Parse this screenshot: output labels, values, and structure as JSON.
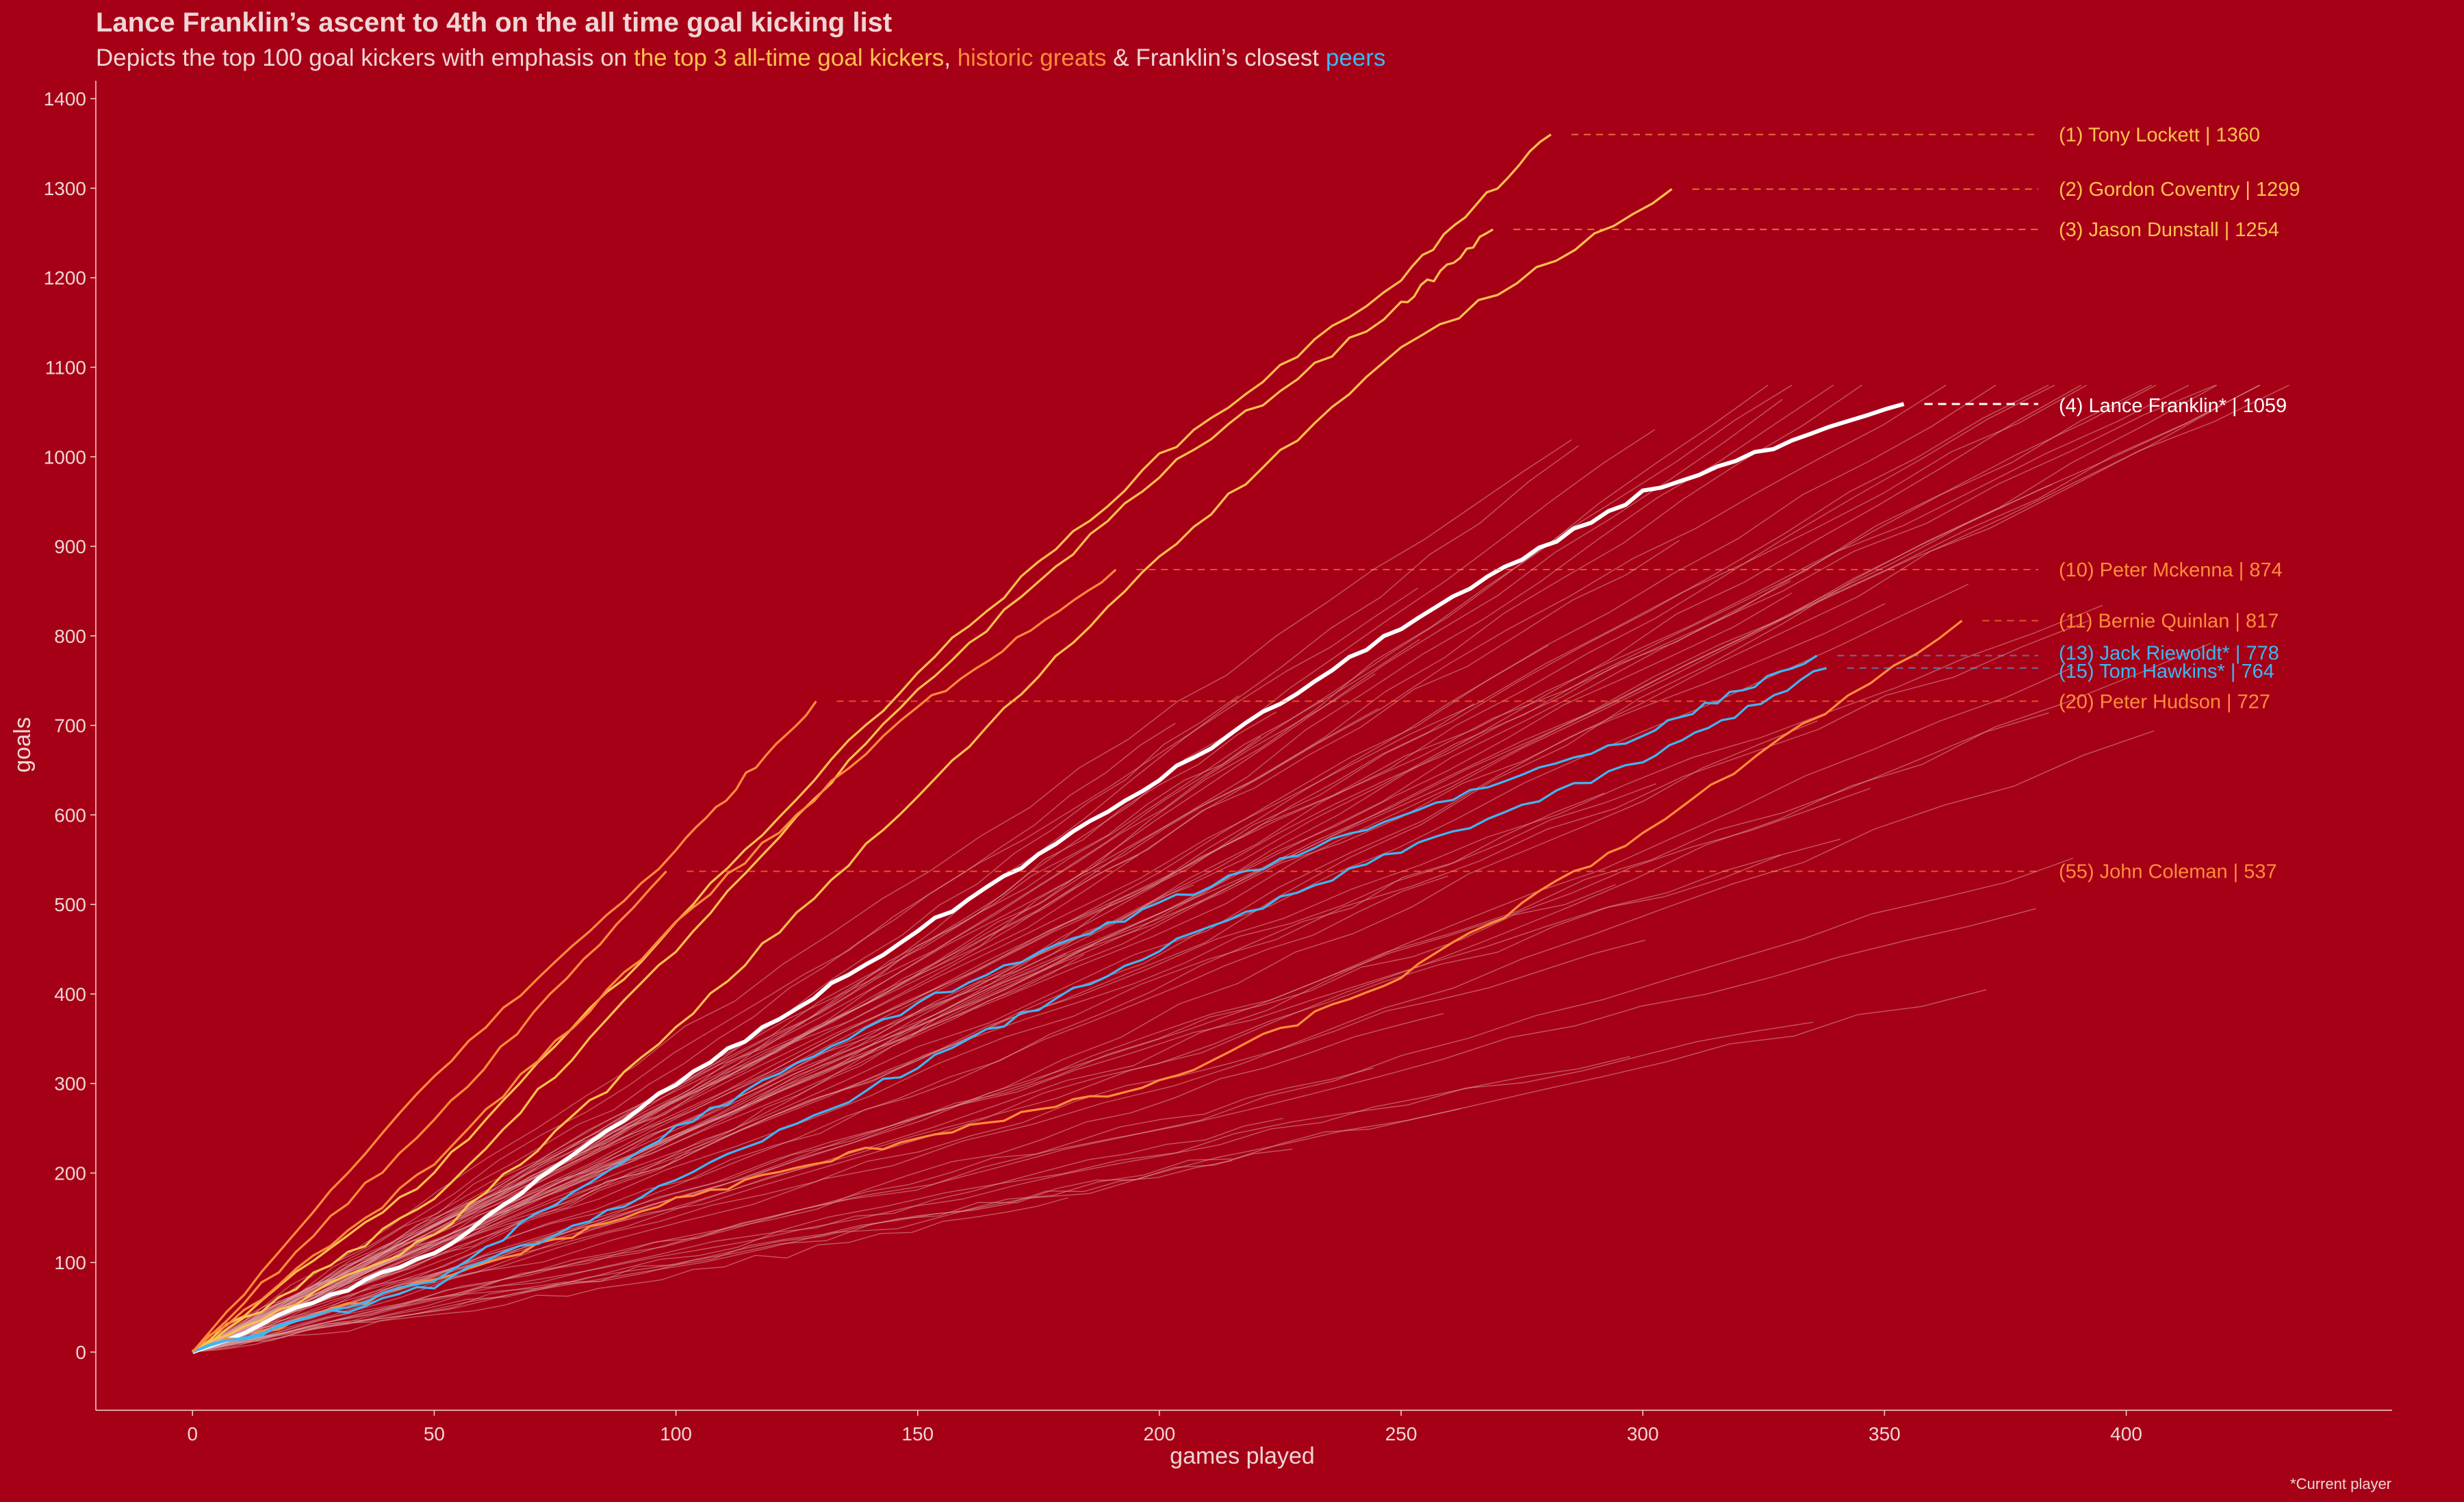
{
  "chart_data": {
    "type": "line",
    "title": "Lance Franklin’s ascent to 4th on the all time goal kicking list",
    "subtitle": [
      {
        "text": "Depicts the top 100 goal kickers with emphasis on ",
        "color": "#f0d6d6"
      },
      {
        "text": "the top 3 all-time goal kickers",
        "color": "#ffc04d"
      },
      {
        "text": ", ",
        "color": "#f0d6d6"
      },
      {
        "text": "historic greats",
        "color": "#ff8c3a"
      },
      {
        "text": " & Franklin’s closest ",
        "color": "#f0d6d6"
      },
      {
        "text": "peers",
        "color": "#3db7f5"
      }
    ],
    "xlabel": "games played",
    "ylabel": "goals",
    "xlim": [
      -20,
      455
    ],
    "ylim": [
      -65,
      1420
    ],
    "xticks": [
      0,
      50,
      100,
      150,
      200,
      250,
      300,
      350,
      400
    ],
    "yticks": [
      0,
      100,
      200,
      300,
      400,
      500,
      600,
      700,
      800,
      900,
      1000,
      1100,
      1200,
      1300,
      1400
    ],
    "note": "*Current player",
    "colors": {
      "background": "#a60016",
      "top3": "#ffc04d",
      "greats": "#ff8c3a",
      "peers": "#3db7f5",
      "franklin": "#ffffff",
      "others": "#d9a0a0"
    },
    "series": [
      {
        "name": "(1) Tony Lockett | 1360",
        "group": "top3",
        "x": [
          0,
          50,
          100,
          150,
          200,
          250,
          281
        ],
        "y": [
          0,
          200,
          480,
          760,
          1000,
          1200,
          1360
        ]
      },
      {
        "name": "(2) Gordon Coventry | 1299",
        "group": "top3",
        "x": [
          0,
          50,
          100,
          150,
          200,
          250,
          306
        ],
        "y": [
          0,
          130,
          360,
          620,
          890,
          1120,
          1299
        ]
      },
      {
        "name": "(3) Jason Dunstall | 1254",
        "group": "top3",
        "x": [
          0,
          50,
          100,
          150,
          200,
          250,
          269
        ],
        "y": [
          0,
          170,
          450,
          740,
          980,
          1170,
          1254
        ]
      },
      {
        "name": "(4) Lance Franklin* | 1059",
        "group": "franklin",
        "x": [
          0,
          50,
          100,
          150,
          200,
          250,
          300,
          354
        ],
        "y": [
          0,
          110,
          300,
          470,
          640,
          810,
          960,
          1059
        ]
      },
      {
        "name": "(10) Peter Mckenna | 874",
        "group": "greats",
        "x": [
          0,
          50,
          100,
          150,
          191
        ],
        "y": [
          0,
          210,
          480,
          720,
          874
        ]
      },
      {
        "name": "(11) Bernie Quinlan | 817",
        "group": "greats",
        "x": [
          0,
          50,
          100,
          150,
          200,
          250,
          300,
          366
        ],
        "y": [
          0,
          80,
          170,
          240,
          300,
          420,
          580,
          817
        ]
      },
      {
        "name": "(13) Jack Riewoldt* | 778",
        "group": "peers",
        "x": [
          0,
          50,
          100,
          150,
          200,
          250,
          300,
          336
        ],
        "y": [
          0,
          80,
          250,
          390,
          500,
          600,
          690,
          778
        ]
      },
      {
        "name": "(15) Tom Hawkins* | 764",
        "group": "peers",
        "x": [
          0,
          50,
          100,
          150,
          200,
          250,
          300,
          338
        ],
        "y": [
          0,
          75,
          190,
          320,
          450,
          560,
          660,
          764
        ]
      },
      {
        "name": "(20) Peter Hudson | 727",
        "group": "greats",
        "x": [
          0,
          50,
          100,
          129
        ],
        "y": [
          0,
          310,
          560,
          727
        ]
      },
      {
        "name": "(55) John Coleman | 537",
        "group": "greats",
        "x": [
          0,
          50,
          98
        ],
        "y": [
          0,
          260,
          537
        ]
      }
    ]
  }
}
